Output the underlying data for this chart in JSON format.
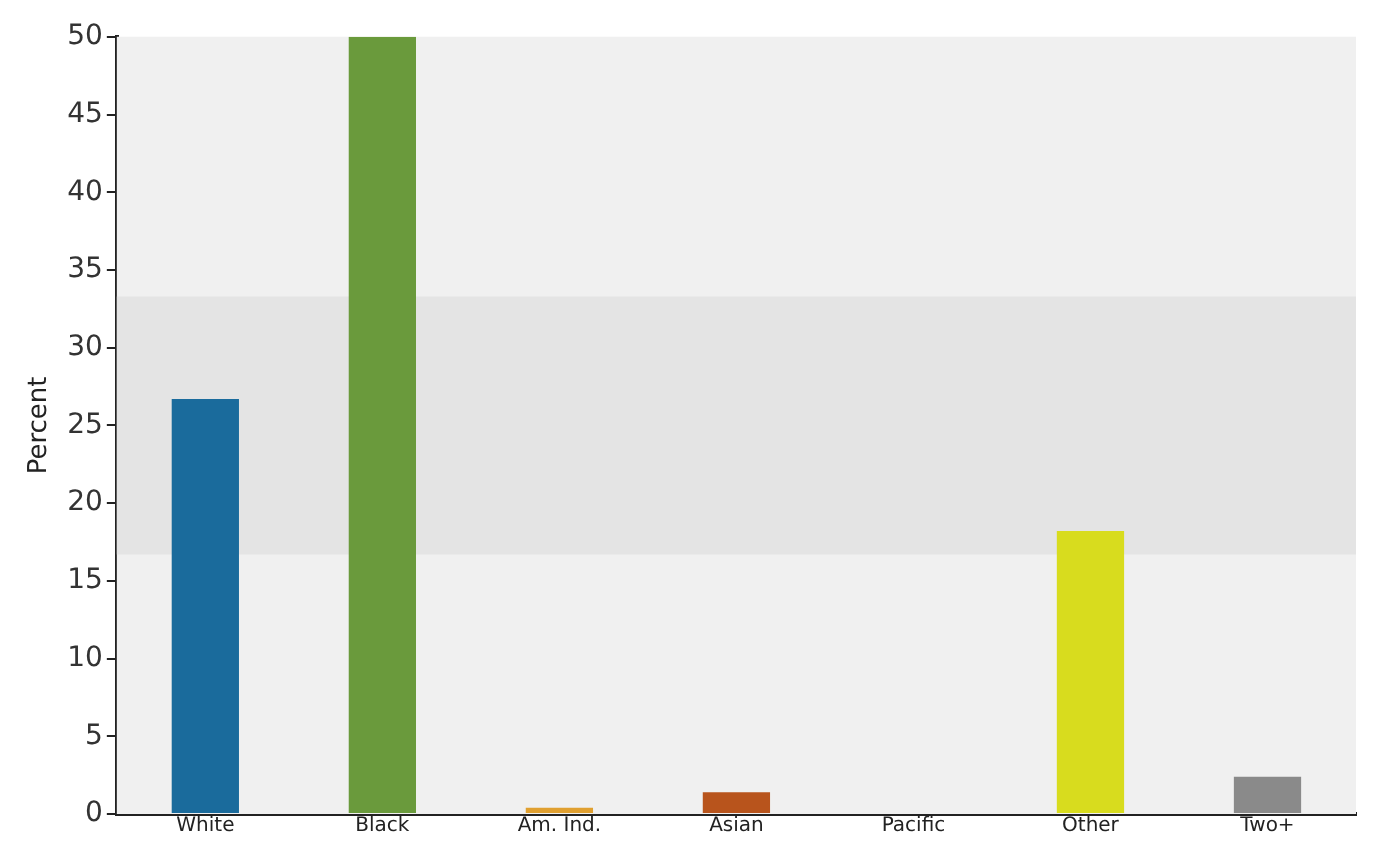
{
  "chart_data": {
    "type": "bar",
    "ylabel": "Percent",
    "categories": [
      "White",
      "Black",
      "Am. Ind.",
      "Asian",
      "Pacific",
      "Other",
      "Two+"
    ],
    "values": [
      26.7,
      50,
      0.4,
      1.4,
      0,
      18.2,
      2.4
    ],
    "colors": [
      "#1a6b9c",
      "#6a9a3c",
      "#e0a030",
      "#b8541c",
      "#8a3c8c",
      "#d8dc1e",
      "#8a8a8a"
    ],
    "ylim": [
      0,
      50
    ],
    "yticks": [
      0,
      5,
      10,
      15,
      20,
      25,
      30,
      35,
      40,
      45,
      50
    ],
    "grid": false,
    "legend": false,
    "bands": [
      {
        "axis": "y",
        "from": 16.7,
        "to": 33.3,
        "color": "#e4e4e4"
      }
    ]
  }
}
